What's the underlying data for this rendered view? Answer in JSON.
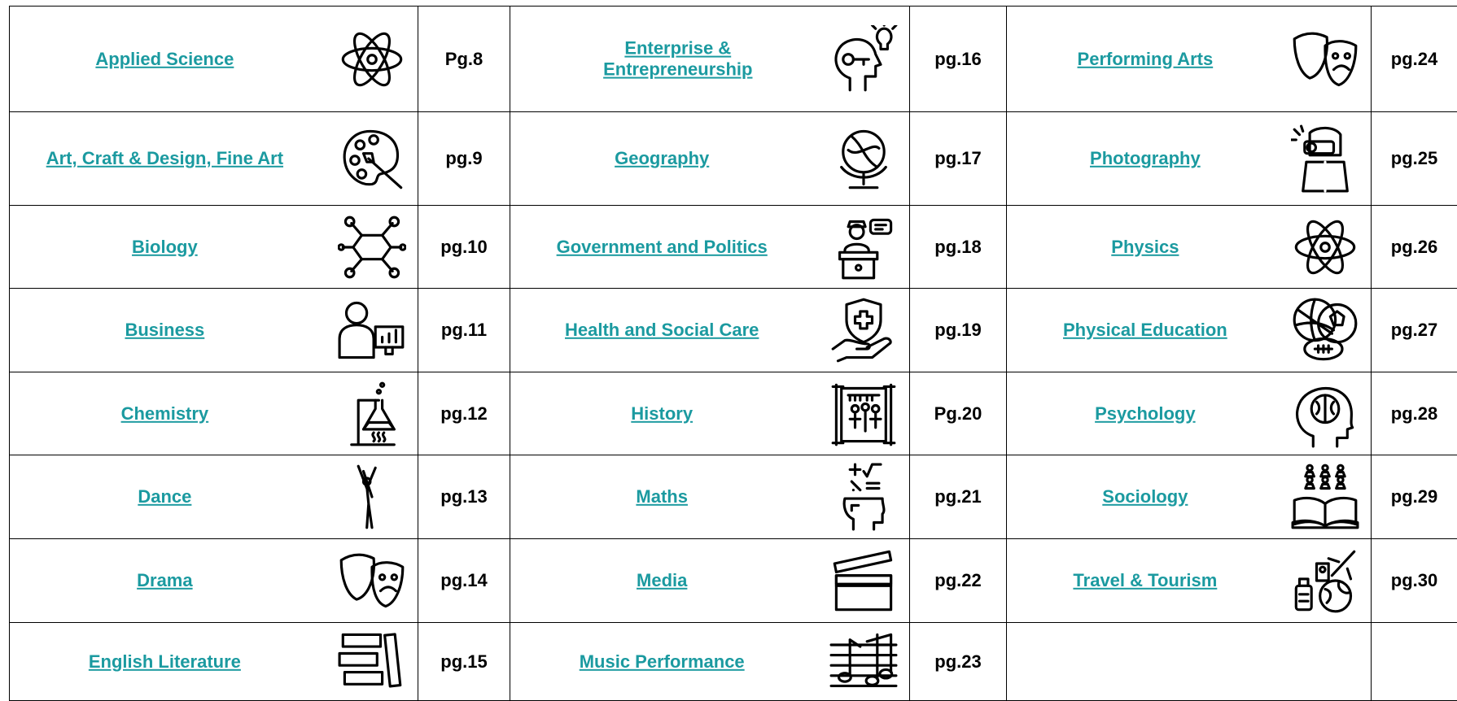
{
  "columns": [
    {
      "items": [
        {
          "subject": "Applied Science",
          "page": "Pg.8"
        },
        {
          "subject": "Art, Craft & Design, Fine Art",
          "page": "pg.9"
        },
        {
          "subject": "Biology",
          "page": "pg.10"
        },
        {
          "subject": "Business",
          "page": "pg.11"
        },
        {
          "subject": "Chemistry",
          "page": "pg.12"
        },
        {
          "subject": "Dance",
          "page": "pg.13"
        },
        {
          "subject": "Drama",
          "page": "pg.14"
        },
        {
          "subject": "English Literature",
          "page": "pg.15"
        }
      ]
    },
    {
      "items": [
        {
          "subject": "Enterprise & Entrepreneurship",
          "page": "pg.16"
        },
        {
          "subject": "Geography",
          "page": "pg.17"
        },
        {
          "subject": "Government and Politics",
          "page": "pg.18"
        },
        {
          "subject": "Health and Social Care",
          "page": "pg.19"
        },
        {
          "subject": "History",
          "page": "Pg.20"
        },
        {
          "subject": "Maths",
          "page": "pg.21"
        },
        {
          "subject": "Media",
          "page": "pg.22"
        },
        {
          "subject": "Music Performance",
          "page": "pg.23"
        }
      ]
    },
    {
      "items": [
        {
          "subject": "Performing Arts",
          "page": "pg.24"
        },
        {
          "subject": "Photography",
          "page": "pg.25"
        },
        {
          "subject": "Physics",
          "page": "pg.26"
        },
        {
          "subject": "Physical Education",
          "page": "pg.27"
        },
        {
          "subject": "Psychology",
          "page": "pg.28"
        },
        {
          "subject": "Sociology",
          "page": "pg.29"
        },
        {
          "subject": "Travel & Tourism",
          "page": "pg.30"
        }
      ]
    }
  ]
}
